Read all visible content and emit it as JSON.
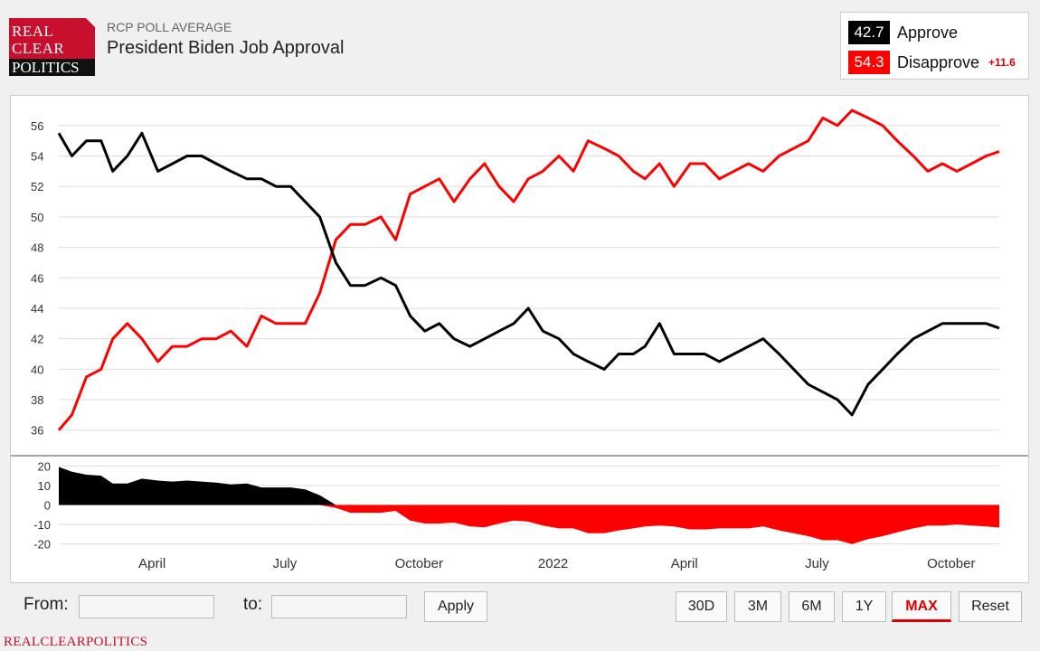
{
  "header": {
    "logo": [
      "REAL",
      "CLEAR",
      "POLITICS"
    ],
    "supertitle": "RCP POLL AVERAGE",
    "title": "President Biden Job Approval"
  },
  "legend": {
    "approve_value": "42.7",
    "approve_label": "Approve",
    "approve_color": "#000000",
    "disapprove_value": "54.3",
    "disapprove_label": "Disapprove",
    "disapprove_color": "#ff0000",
    "spread": "+11.6"
  },
  "controls": {
    "from_label": "From:",
    "to_label": "to:",
    "from_value": "",
    "to_value": "",
    "apply": "Apply",
    "ranges": [
      "30D",
      "3M",
      "6M",
      "1Y",
      "MAX",
      "Reset"
    ],
    "active_range": "MAX"
  },
  "footer": "REALCLEARPOLITICS",
  "chart_data": {
    "type": "line",
    "x_tick_labels": [
      "April",
      "July",
      "October",
      "2022",
      "April",
      "July",
      "October"
    ],
    "x_tick_dates": [
      "2021-04-01",
      "2021-07-01",
      "2021-10-01",
      "2022-01-01",
      "2022-04-01",
      "2022-07-01",
      "2022-10-01"
    ],
    "main": {
      "ylim": [
        34.5,
        57
      ],
      "yticks": [
        36,
        38,
        40,
        42,
        44,
        46,
        48,
        50,
        52,
        54,
        56
      ],
      "grid": true
    },
    "spread_panel": {
      "ylim": [
        -22,
        22
      ],
      "yticks": [
        20,
        10,
        0,
        -10,
        -20
      ]
    },
    "series": [
      {
        "name": "Approve",
        "color": "#000000",
        "x": [
          "2021-01-27",
          "2021-02-05",
          "2021-02-15",
          "2021-02-25",
          "2021-03-05",
          "2021-03-15",
          "2021-03-25",
          "2021-04-05",
          "2021-04-15",
          "2021-04-25",
          "2021-05-05",
          "2021-05-15",
          "2021-05-25",
          "2021-06-05",
          "2021-06-15",
          "2021-06-25",
          "2021-07-05",
          "2021-07-15",
          "2021-07-25",
          "2021-08-05",
          "2021-08-15",
          "2021-08-25",
          "2021-09-05",
          "2021-09-15",
          "2021-09-25",
          "2021-10-05",
          "2021-10-15",
          "2021-10-25",
          "2021-11-05",
          "2021-11-15",
          "2021-11-25",
          "2021-12-05",
          "2021-12-15",
          "2021-12-25",
          "2022-01-05",
          "2022-01-15",
          "2022-01-25",
          "2022-02-05",
          "2022-02-15",
          "2022-02-25",
          "2022-03-05",
          "2022-03-15",
          "2022-03-25",
          "2022-04-05",
          "2022-04-15",
          "2022-04-25",
          "2022-05-05",
          "2022-05-15",
          "2022-05-25",
          "2022-06-05",
          "2022-06-15",
          "2022-06-25",
          "2022-07-05",
          "2022-07-15",
          "2022-07-25",
          "2022-08-05",
          "2022-08-15",
          "2022-08-25",
          "2022-09-05",
          "2022-09-15",
          "2022-09-25",
          "2022-10-05",
          "2022-10-15",
          "2022-10-25",
          "2022-11-03"
        ],
        "y": [
          55.5,
          54.0,
          55.0,
          55.0,
          53.0,
          54.0,
          55.5,
          53.0,
          53.5,
          54.0,
          54.0,
          53.5,
          53.0,
          52.5,
          52.5,
          52.0,
          52.0,
          51.0,
          50.0,
          47.0,
          45.5,
          45.5,
          46.0,
          45.5,
          43.5,
          42.5,
          43.0,
          42.0,
          41.5,
          42.0,
          42.5,
          43.0,
          44.0,
          42.5,
          42.0,
          41.0,
          40.5,
          40.0,
          41.0,
          41.0,
          41.5,
          43.0,
          41.0,
          41.0,
          41.0,
          40.5,
          41.0,
          41.5,
          42.0,
          41.0,
          40.0,
          39.0,
          38.5,
          38.0,
          37.0,
          39.0,
          40.0,
          41.0,
          42.0,
          42.5,
          43.0,
          43.0,
          43.0,
          43.0,
          42.7
        ]
      },
      {
        "name": "Disapprove",
        "color": "#ff0000",
        "x": [
          "2021-01-27",
          "2021-02-05",
          "2021-02-15",
          "2021-02-25",
          "2021-03-05",
          "2021-03-15",
          "2021-03-25",
          "2021-04-05",
          "2021-04-15",
          "2021-04-25",
          "2021-05-05",
          "2021-05-15",
          "2021-05-25",
          "2021-06-05",
          "2021-06-15",
          "2021-06-25",
          "2021-07-05",
          "2021-07-15",
          "2021-07-25",
          "2021-08-05",
          "2021-08-15",
          "2021-08-25",
          "2021-09-05",
          "2021-09-15",
          "2021-09-25",
          "2021-10-05",
          "2021-10-15",
          "2021-10-25",
          "2021-11-05",
          "2021-11-15",
          "2021-11-25",
          "2021-12-05",
          "2021-12-15",
          "2021-12-25",
          "2022-01-05",
          "2022-01-15",
          "2022-01-25",
          "2022-02-05",
          "2022-02-15",
          "2022-02-25",
          "2022-03-05",
          "2022-03-15",
          "2022-03-25",
          "2022-04-05",
          "2022-04-15",
          "2022-04-25",
          "2022-05-05",
          "2022-05-15",
          "2022-05-25",
          "2022-06-05",
          "2022-06-15",
          "2022-06-25",
          "2022-07-05",
          "2022-07-15",
          "2022-07-25",
          "2022-08-05",
          "2022-08-15",
          "2022-08-25",
          "2022-09-05",
          "2022-09-15",
          "2022-09-25",
          "2022-10-05",
          "2022-10-15",
          "2022-10-25",
          "2022-11-03"
        ],
        "y": [
          36.0,
          37.0,
          39.5,
          40.0,
          42.0,
          43.0,
          42.0,
          40.5,
          41.5,
          41.5,
          42.0,
          42.0,
          42.5,
          41.5,
          43.5,
          43.0,
          43.0,
          43.0,
          45.0,
          48.5,
          49.5,
          49.5,
          50.0,
          48.5,
          51.5,
          52.0,
          52.5,
          51.0,
          52.5,
          53.5,
          52.0,
          51.0,
          52.5,
          53.0,
          54.0,
          53.0,
          55.0,
          54.5,
          54.0,
          53.0,
          52.5,
          53.5,
          52.0,
          53.5,
          53.5,
          52.5,
          53.0,
          53.5,
          53.0,
          54.0,
          54.5,
          55.0,
          56.5,
          56.0,
          57.0,
          56.5,
          56.0,
          55.0,
          54.0,
          53.0,
          53.5,
          53.0,
          53.5,
          54.0,
          54.3
        ]
      },
      {
        "name": "Spread",
        "x": [
          "2021-01-27",
          "2021-02-05",
          "2021-02-15",
          "2021-02-25",
          "2021-03-05",
          "2021-03-15",
          "2021-03-25",
          "2021-04-05",
          "2021-04-15",
          "2021-04-25",
          "2021-05-05",
          "2021-05-15",
          "2021-05-25",
          "2021-06-05",
          "2021-06-15",
          "2021-06-25",
          "2021-07-05",
          "2021-07-15",
          "2021-07-25",
          "2021-08-05",
          "2021-08-15",
          "2021-08-25",
          "2021-09-05",
          "2021-09-15",
          "2021-09-25",
          "2021-10-05",
          "2021-10-15",
          "2021-10-25",
          "2021-11-05",
          "2021-11-15",
          "2021-11-25",
          "2021-12-05",
          "2021-12-15",
          "2021-12-25",
          "2022-01-05",
          "2022-01-15",
          "2022-01-25",
          "2022-02-05",
          "2022-02-15",
          "2022-02-25",
          "2022-03-05",
          "2022-03-15",
          "2022-03-25",
          "2022-04-05",
          "2022-04-15",
          "2022-04-25",
          "2022-05-05",
          "2022-05-15",
          "2022-05-25",
          "2022-06-05",
          "2022-06-15",
          "2022-06-25",
          "2022-07-05",
          "2022-07-15",
          "2022-07-25",
          "2022-08-05",
          "2022-08-15",
          "2022-08-25",
          "2022-09-05",
          "2022-09-15",
          "2022-09-25",
          "2022-10-05",
          "2022-10-15",
          "2022-10-25",
          "2022-11-03"
        ],
        "y": [
          19.5,
          17.0,
          15.5,
          15.0,
          11.0,
          11.0,
          13.5,
          12.5,
          12.0,
          12.5,
          12.0,
          11.5,
          10.5,
          11.0,
          9.0,
          9.0,
          9.0,
          8.0,
          5.0,
          -1.5,
          -4.0,
          -4.0,
          -4.0,
          -3.0,
          -8.0,
          -9.5,
          -9.5,
          -9.0,
          -11.0,
          -11.5,
          -9.5,
          -8.0,
          -8.5,
          -10.5,
          -12.0,
          -12.0,
          -14.5,
          -14.5,
          -13.0,
          -12.0,
          -11.0,
          -10.5,
          -11.0,
          -12.5,
          -12.5,
          -12.0,
          -12.0,
          -12.0,
          -11.0,
          -13.0,
          -14.5,
          -16.0,
          -18.0,
          -18.0,
          -20.0,
          -17.5,
          -16.0,
          -14.0,
          -12.0,
          -10.5,
          -10.5,
          -10.0,
          -10.5,
          -11.0,
          -11.6
        ]
      }
    ]
  }
}
